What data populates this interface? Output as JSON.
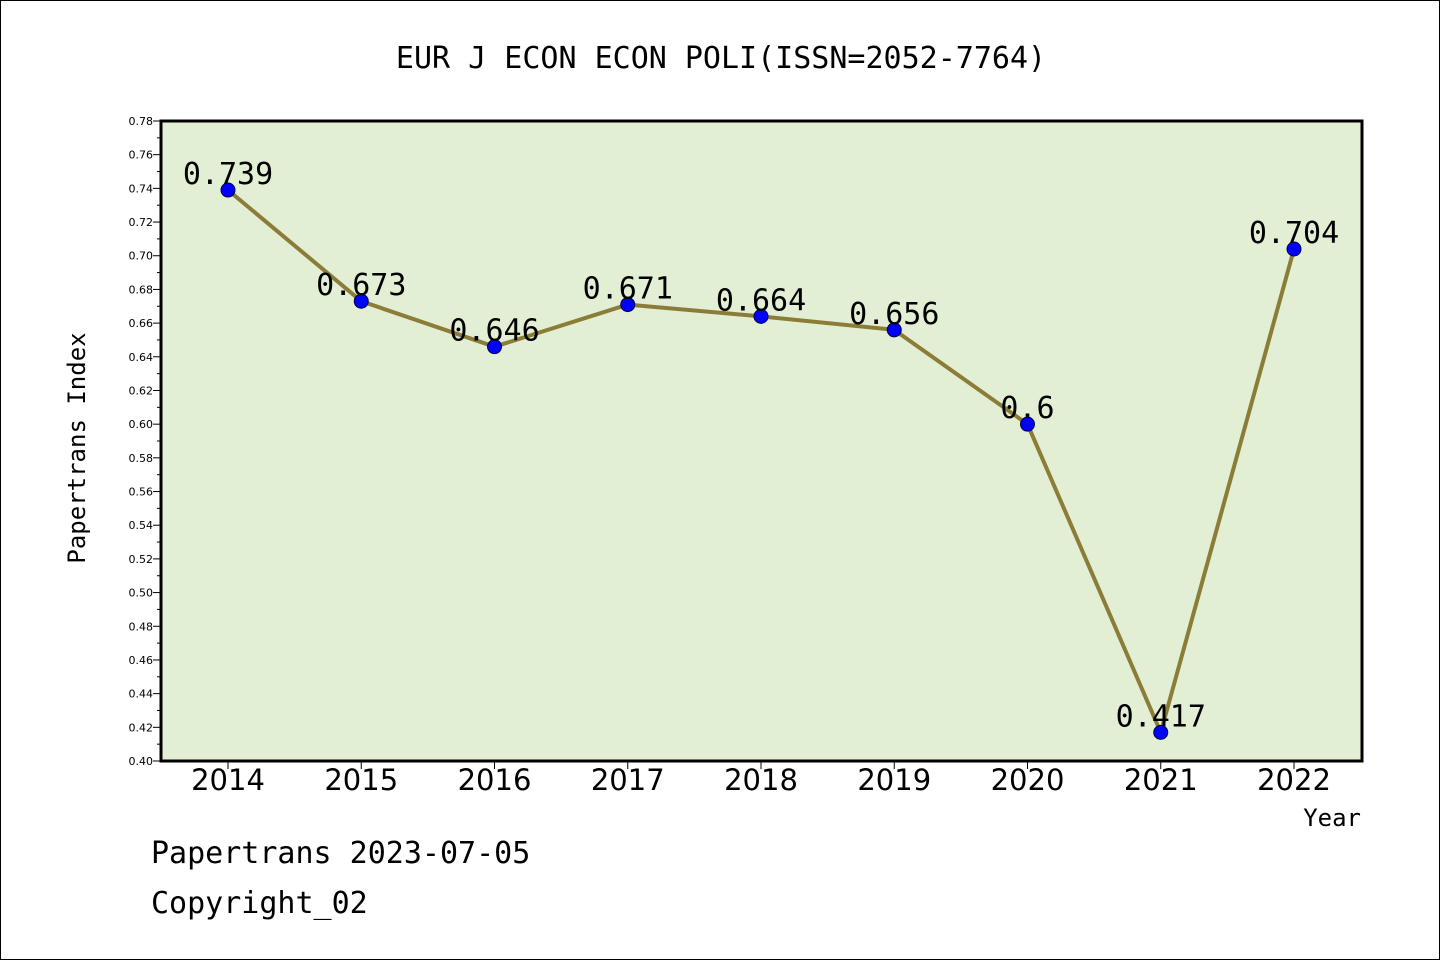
{
  "chart_data": {
    "type": "line",
    "title": "EUR J ECON ECON POLI(ISSN=2052-7764)",
    "xlabel": "Year",
    "ylabel": "Papertrans Index",
    "categories": [
      "2014",
      "2015",
      "2016",
      "2017",
      "2018",
      "2019",
      "2020",
      "2021",
      "2022"
    ],
    "series": [
      {
        "values": [
          0.739,
          0.673,
          0.646,
          0.671,
          0.664,
          0.656,
          0.6,
          0.417,
          0.704
        ],
        "labels": [
          "0.739",
          "0.673",
          "0.646",
          "0.671",
          "0.664",
          "0.656",
          "0.6",
          "0.417",
          "0.704"
        ]
      }
    ],
    "ylim": [
      0.4,
      0.78
    ],
    "yticks": [
      "0.40",
      "0.42",
      "0.44",
      "0.46",
      "0.48",
      "0.50",
      "0.52",
      "0.54",
      "0.56",
      "0.58",
      "0.60",
      "0.62",
      "0.64",
      "0.66",
      "0.68",
      "0.70",
      "0.72",
      "0.74",
      "0.76",
      "0.78"
    ],
    "grid": false,
    "colors": {
      "plot_background": "#e2efd5",
      "line": "#8b7d37",
      "marker": "#0000ff"
    }
  },
  "footer": {
    "line1": "Papertrans 2023-07-05",
    "line2": "Copyright_02"
  }
}
